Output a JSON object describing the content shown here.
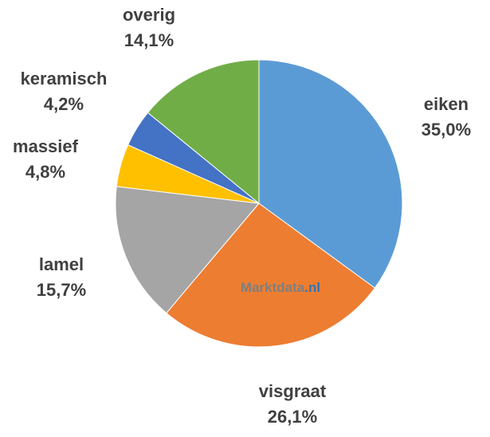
{
  "chart_data": {
    "type": "pie",
    "categories": [
      "eiken",
      "visgraat",
      "lamel",
      "massief",
      "keramisch",
      "overig"
    ],
    "values": [
      35.0,
      26.1,
      15.7,
      4.8,
      4.2,
      14.1
    ],
    "value_labels": [
      "35,0%",
      "26,1%",
      "15,7%",
      "4,8%",
      "4,2%",
      "14,1%"
    ],
    "colors": [
      "#5b9bd5",
      "#ed7d31",
      "#a5a5a5",
      "#ffc000",
      "#4472c4",
      "#70ad47"
    ],
    "watermark": [
      "Marktdata",
      ".nl"
    ]
  }
}
